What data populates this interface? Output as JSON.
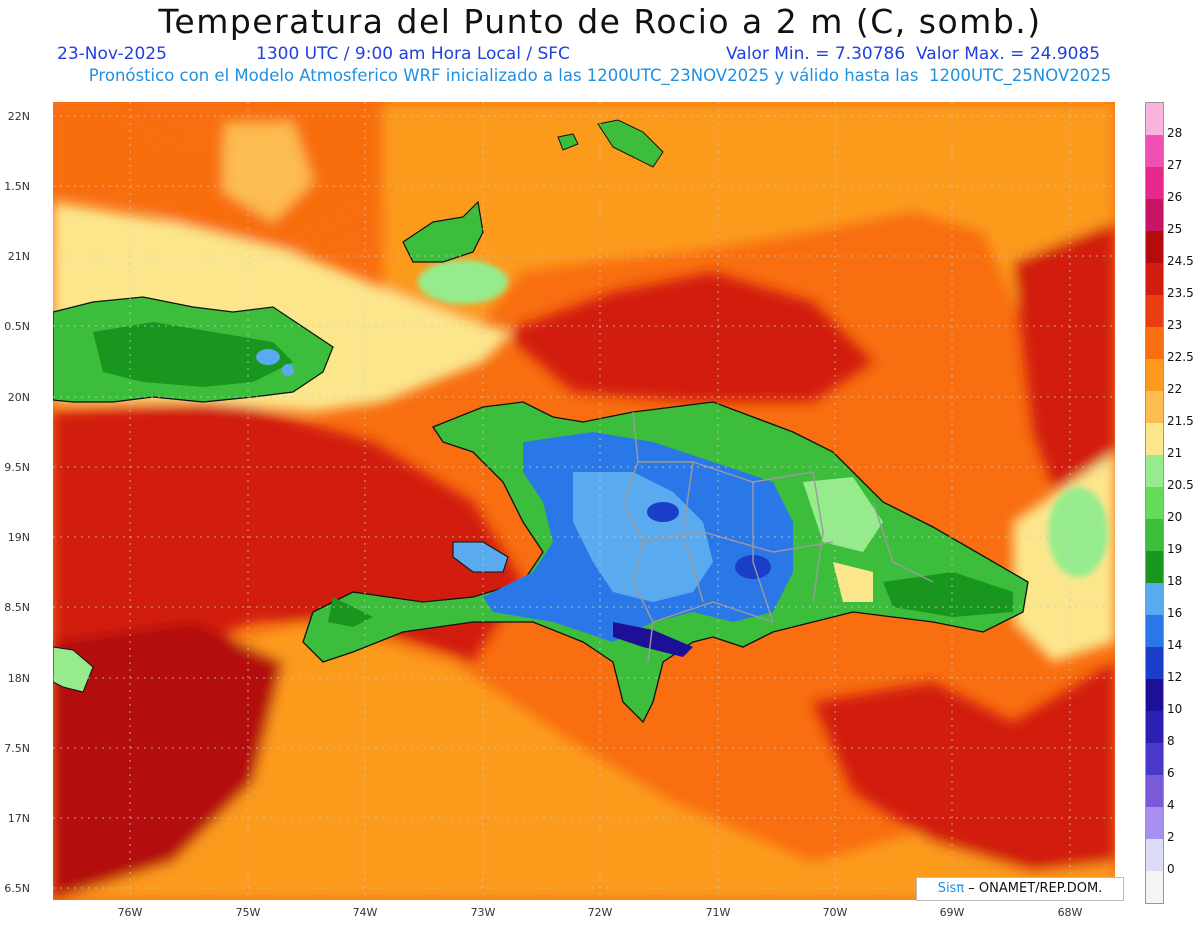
{
  "header": {
    "title": "Temperatura del Punto de Rocio a 2 m (C, somb.)",
    "date": "23-Nov-2025",
    "time": "1300 UTC / 9:00 am Hora Local / SFC",
    "min_max": "Valor Min. = 7.30786  Valor Max. = 24.9085",
    "subtitle": "Pronóstico con el Modelo Atmosferico WRF inicializado a las 1200UTC_23NOV2025 y válido hasta las  1200UTC_25NOV2025"
  },
  "map": {
    "lat_labels": [
      "22N",
      "1.5N",
      "21N",
      "0.5N",
      "20N",
      "9.5N",
      "19N",
      "8.5N",
      "18N",
      "7.5N",
      "17N",
      "6.5N"
    ],
    "lon_labels": [
      "76W",
      "75W",
      "74W",
      "73W",
      "72W",
      "71W",
      "70W",
      "69W",
      "68W"
    ]
  },
  "colorbar": {
    "labels": [
      "0",
      "2",
      "4",
      "6",
      "8",
      "10",
      "12",
      "14",
      "16",
      "18",
      "19",
      "20",
      "20.5",
      "21",
      "21.5",
      "22",
      "22.5",
      "23",
      "23.5",
      "24.5",
      "25",
      "26",
      "27",
      "28"
    ],
    "colors": [
      "#f4f4f4",
      "#dcdcf4",
      "#a890f0",
      "#7a5ad8",
      "#4a38c8",
      "#2c20b4",
      "#1e1096",
      "#1a3ec8",
      "#2a78e8",
      "#5aaaf0",
      "#18961e",
      "#3cbe3c",
      "#64dc5a",
      "#96ec8c",
      "#fce68c",
      "#fcbc50",
      "#fc9a1e",
      "#f86e10",
      "#ea3e12",
      "#d21c10",
      "#b40c0c",
      "#c81464",
      "#e6288c",
      "#f050b4",
      "#f8b4dc"
    ]
  },
  "credit": {
    "brand": "Sisπ",
    "text": " – ONAMET/REP.DOM."
  }
}
